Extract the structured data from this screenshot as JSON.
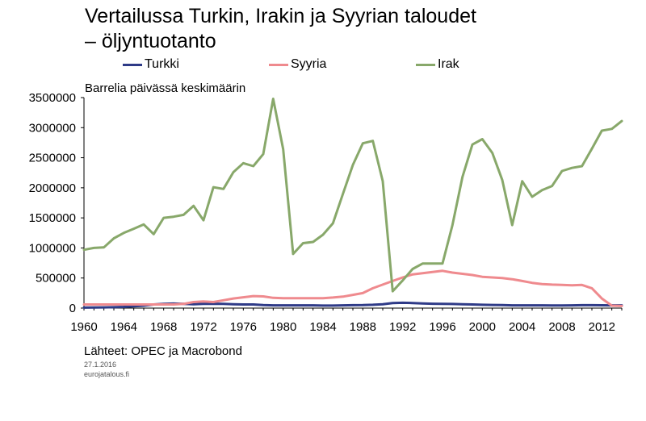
{
  "title_line1": "Vertailussa Turkin, Irakin ja Syyrian taloudet",
  "title_line2": "– öljyntuotanto",
  "unit_label": "Barrelia päivässä keskimäärin",
  "source": "Lähteet: OPEC ja Macrobond",
  "date": "27.1.2016",
  "site": "eurojatalous.fi",
  "chart_data": {
    "type": "line",
    "title": "Vertailussa Turkin, Irakin ja Syyrian taloudet – öljyntuotanto",
    "ylabel": "Barrelia päivässä keskimäärin",
    "xlabel": "",
    "xlim": [
      1960,
      2014
    ],
    "ylim": [
      0,
      3500000
    ],
    "grid": false,
    "legend_position": "top",
    "x_ticks": [
      "1960",
      "1964",
      "1968",
      "1972",
      "1976",
      "1980",
      "1984",
      "1988",
      "1992",
      "1996",
      "2000",
      "2004",
      "2008",
      "2012"
    ],
    "y_ticks": [
      "0",
      "500000",
      "1000000",
      "1500000",
      "2000000",
      "2500000",
      "3000000",
      "3500000"
    ],
    "x": [
      1960,
      1961,
      1962,
      1963,
      1964,
      1965,
      1966,
      1967,
      1968,
      1969,
      1970,
      1971,
      1972,
      1973,
      1974,
      1975,
      1976,
      1977,
      1978,
      1979,
      1980,
      1981,
      1982,
      1983,
      1984,
      1985,
      1986,
      1987,
      1988,
      1989,
      1990,
      1991,
      1992,
      1993,
      1994,
      1995,
      1996,
      1997,
      1998,
      1999,
      2000,
      2001,
      2002,
      2003,
      2004,
      2005,
      2006,
      2007,
      2008,
      2009,
      2010,
      2011,
      2012,
      2013,
      2014
    ],
    "series": [
      {
        "name": "Turkki",
        "color": "#2e3a87",
        "values": [
          8000,
          10000,
          12000,
          15000,
          20000,
          30000,
          40000,
          60000,
          70000,
          75000,
          70000,
          65000,
          70000,
          72000,
          70000,
          65000,
          60000,
          60000,
          50000,
          45000,
          45000,
          45000,
          45000,
          45000,
          42000,
          42000,
          45000,
          48000,
          50000,
          55000,
          65000,
          85000,
          88000,
          85000,
          78000,
          72000,
          70000,
          68000,
          65000,
          60000,
          55000,
          52000,
          50000,
          46000,
          45000,
          45000,
          45000,
          44000,
          43000,
          46000,
          48000,
          48000,
          47000,
          46000,
          46000
        ]
      },
      {
        "name": "Syyria",
        "color": "#ef8a8e",
        "values": [
          60000,
          60000,
          60000,
          60000,
          60000,
          60000,
          60000,
          60000,
          60000,
          60000,
          70000,
          100000,
          110000,
          100000,
          130000,
          160000,
          180000,
          200000,
          195000,
          170000,
          165000,
          165000,
          165000,
          165000,
          165000,
          175000,
          190000,
          220000,
          250000,
          330000,
          390000,
          450000,
          510000,
          560000,
          580000,
          600000,
          620000,
          590000,
          570000,
          550000,
          520000,
          510000,
          500000,
          480000,
          450000,
          420000,
          400000,
          390000,
          385000,
          380000,
          385000,
          330000,
          160000,
          40000,
          35000
        ]
      },
      {
        "name": "Irak",
        "color": "#88a86a",
        "values": [
          970000,
          1000000,
          1010000,
          1160000,
          1250000,
          1320000,
          1390000,
          1230000,
          1500000,
          1520000,
          1550000,
          1700000,
          1460000,
          2010000,
          1980000,
          2260000,
          2410000,
          2360000,
          2560000,
          3480000,
          2640000,
          900000,
          1080000,
          1100000,
          1220000,
          1410000,
          1900000,
          2380000,
          2740000,
          2780000,
          2110000,
          280000,
          460000,
          650000,
          740000,
          740000,
          740000,
          1380000,
          2180000,
          2720000,
          2810000,
          2580000,
          2130000,
          1380000,
          2110000,
          1850000,
          1960000,
          2030000,
          2280000,
          2330000,
          2360000,
          2650000,
          2950000,
          2980000,
          3110000
        ]
      }
    ]
  }
}
